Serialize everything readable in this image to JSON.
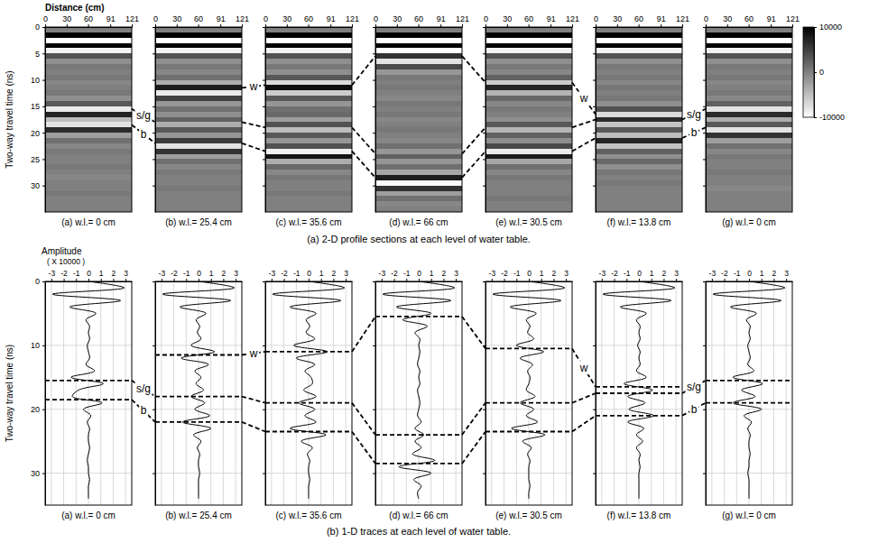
{
  "chart_data": {
    "type": "radargram",
    "times": [
      0,
      1,
      2,
      3,
      4,
      5,
      6,
      7,
      8,
      9,
      10,
      11,
      12,
      13,
      14,
      15,
      16,
      17,
      18,
      19,
      20,
      21,
      22,
      23,
      24,
      25,
      26,
      27,
      28,
      29,
      30,
      31,
      32,
      33,
      34
    ],
    "panels": [
      {
        "label": "(a) w.l.= 0 cm",
        "image": [
          0,
          10000,
          -10000,
          10000,
          -9000,
          3600,
          -1200,
          600,
          0,
          600,
          -600,
          0,
          600,
          -1200,
          3000,
          -8400,
          7200,
          -4800,
          -7800,
          6600,
          -2400,
          1200,
          -600,
          600,
          0,
          0,
          600,
          0,
          -600,
          0,
          0,
          600,
          0,
          0,
          0
        ],
        "trace": [
          0,
          2.9,
          -2.9,
          2.6,
          -1.5,
          0.6,
          -0.2,
          0.1,
          0,
          0.1,
          -0.1,
          0,
          0.1,
          -0.2,
          0.5,
          -1.4,
          1.2,
          -0.8,
          -1.3,
          1.1,
          -0.4,
          0.2,
          -0.1,
          0.1,
          0,
          0,
          0.1,
          0,
          -0.1,
          0,
          0,
          0.1,
          0,
          0,
          0
        ]
      },
      {
        "label": "(b) w.l.= 25.4 cm",
        "image": [
          0,
          10000,
          -10000,
          10000,
          -9000,
          3600,
          -1200,
          600,
          -600,
          1200,
          -3600,
          7800,
          -8400,
          4800,
          -1800,
          1200,
          -1200,
          2400,
          -3600,
          3000,
          -1800,
          5400,
          -7800,
          6000,
          -2400,
          1200,
          -600,
          600,
          0,
          0,
          600,
          0,
          0,
          0,
          0
        ],
        "trace": [
          0,
          2.9,
          -2.9,
          2.6,
          -1.5,
          0.6,
          -0.2,
          0.1,
          -0.1,
          0.2,
          -0.6,
          1.3,
          -1.4,
          0.8,
          -0.3,
          0.2,
          -0.2,
          0.4,
          -0.6,
          0.5,
          -0.3,
          0.9,
          -1.3,
          1.0,
          -0.4,
          0.2,
          -0.1,
          0.1,
          0,
          0,
          0.1,
          0,
          0,
          0,
          0
        ]
      },
      {
        "label": "(c) w.l.= 35.6 cm",
        "image": [
          0,
          10000,
          -10000,
          10000,
          -9000,
          3600,
          -1200,
          600,
          -1200,
          3000,
          -7200,
          9000,
          -6000,
          3000,
          -1800,
          1200,
          1800,
          -2400,
          3600,
          -4800,
          3000,
          -1800,
          3600,
          -9000,
          8400,
          -3600,
          1800,
          -600,
          600,
          0,
          0,
          600,
          0,
          0,
          0
        ],
        "trace": [
          0,
          2.9,
          -2.9,
          2.6,
          -1.5,
          0.6,
          -0.2,
          0.1,
          -0.2,
          0.5,
          -1.2,
          1.5,
          -1.0,
          0.5,
          -0.3,
          0.2,
          0.3,
          -0.4,
          0.6,
          -0.8,
          0.5,
          -0.3,
          0.6,
          -1.5,
          1.4,
          -0.6,
          0.3,
          -0.1,
          0.1,
          0,
          0,
          0.1,
          0,
          0,
          0
        ]
      },
      {
        "label": "(d) w.l.= 66 cm",
        "image": [
          0,
          10000,
          -10000,
          10000,
          -10000,
          6000,
          -7800,
          4200,
          -1800,
          600,
          0,
          600,
          0,
          -600,
          600,
          0,
          600,
          -600,
          0,
          600,
          0,
          -600,
          1200,
          -1800,
          2400,
          -1800,
          1200,
          -3000,
          7800,
          -9600,
          6000,
          -2400,
          1200,
          -600,
          0
        ],
        "trace": [
          0,
          2.9,
          -2.9,
          2.6,
          -1.8,
          1.0,
          -1.3,
          0.7,
          -0.3,
          0.1,
          0,
          0.1,
          0,
          -0.1,
          0.1,
          0,
          0.1,
          -0.1,
          0,
          0.1,
          0,
          -0.1,
          0.2,
          -0.3,
          0.4,
          -0.3,
          0.2,
          -0.5,
          1.3,
          -1.6,
          1.0,
          -0.4,
          0.2,
          -0.1,
          0
        ]
      },
      {
        "label": "(e) w.l.= 30.5 cm",
        "image": [
          0,
          10000,
          -10000,
          10000,
          -9000,
          3600,
          -1200,
          600,
          -600,
          2400,
          -6000,
          7200,
          -4200,
          1800,
          -600,
          600,
          0,
          -1200,
          3000,
          -4200,
          2400,
          -1200,
          4200,
          -8400,
          7800,
          -3000,
          1200,
          -600,
          600,
          0,
          0,
          0,
          600,
          0,
          0
        ],
        "trace": [
          0,
          2.9,
          -2.9,
          2.6,
          -1.5,
          0.6,
          -0.2,
          0.1,
          -0.1,
          0.4,
          -1.0,
          1.2,
          -0.7,
          0.3,
          -0.1,
          0.1,
          0,
          -0.2,
          0.5,
          -0.7,
          0.4,
          -0.2,
          0.7,
          -1.4,
          1.3,
          -0.5,
          0.2,
          -0.1,
          0.1,
          0,
          0,
          0,
          0.1,
          0,
          0
        ]
      },
      {
        "label": "(f) w.l.= 13.8 cm",
        "image": [
          0,
          10000,
          -10000,
          10000,
          -9000,
          3600,
          -1200,
          600,
          0,
          600,
          -600,
          600,
          0,
          600,
          -1200,
          3600,
          -7200,
          6600,
          -5400,
          3000,
          -4800,
          7200,
          -5400,
          2400,
          -1200,
          1800,
          -1200,
          600,
          0,
          600,
          0,
          0,
          0,
          0,
          0
        ],
        "trace": [
          0,
          2.9,
          -2.9,
          2.6,
          -1.5,
          0.6,
          -0.2,
          0.1,
          0,
          0.1,
          -0.1,
          0.1,
          0,
          0.1,
          -0.2,
          0.6,
          -1.2,
          1.1,
          -0.9,
          0.5,
          -0.8,
          1.2,
          -0.9,
          0.4,
          -0.2,
          0.3,
          -0.2,
          0.1,
          0,
          0.1,
          0,
          0,
          0,
          0,
          0
        ]
      },
      {
        "label": "(g) w.l.= 0 cm",
        "image": [
          0,
          10000,
          -10000,
          10000,
          -9000,
          3600,
          -1200,
          600,
          0,
          600,
          -600,
          0,
          600,
          -600,
          2400,
          -7800,
          6600,
          -3600,
          3000,
          -7800,
          6000,
          -2400,
          1200,
          -600,
          600,
          0,
          0,
          600,
          0,
          0,
          -600,
          0,
          0,
          0,
          0
        ],
        "trace": [
          0,
          2.9,
          -2.9,
          2.6,
          -1.5,
          0.6,
          -0.2,
          0.1,
          0,
          0.1,
          -0.1,
          0,
          0.1,
          -0.1,
          0.4,
          -1.3,
          1.1,
          -0.6,
          0.5,
          -1.3,
          1.0,
          -0.4,
          0.2,
          -0.1,
          0.1,
          0,
          0,
          0.1,
          0,
          0,
          -0.1,
          0,
          0,
          0,
          0
        ]
      }
    ],
    "horizons": [
      {
        "name": "w",
        "values": [
          null,
          11.5,
          11,
          5.5,
          10.5,
          16.5,
          null
        ]
      },
      {
        "name": "s/g",
        "values": [
          15.5,
          18,
          19,
          24,
          19,
          17.5,
          15.5
        ]
      },
      {
        "name": "b",
        "values": [
          18.5,
          22,
          23.5,
          28.5,
          23.5,
          21,
          19
        ]
      }
    ],
    "profile": {
      "caption": "(a) 2-D profile sections at each level of water table.",
      "x_title": "Distance (cm)",
      "y_title": "Two-way travel time (ns)",
      "xlim": [
        0,
        121
      ],
      "xticks": [
        0,
        30,
        60,
        91,
        121
      ],
      "ylim": [
        0,
        35
      ],
      "yticks": [
        0,
        5,
        10,
        15,
        20,
        25,
        30
      ],
      "colorbar": {
        "range": [
          -10000,
          10000
        ],
        "ticks": [
          10000,
          0,
          -10000
        ]
      }
    },
    "traces": {
      "caption": "(b)  1-D traces at each level of water table.",
      "x_title": "Amplitude",
      "x_unit": "( X 10000 )",
      "y_title": "Two-way travel time (ns)",
      "xlim": [
        -3.5,
        3.5
      ],
      "xticks": [
        -3,
        -2,
        -1,
        0,
        1,
        2,
        3
      ],
      "ylim": [
        0,
        35
      ],
      "yticks": [
        0,
        10,
        20,
        30
      ],
      "grid": true
    }
  }
}
